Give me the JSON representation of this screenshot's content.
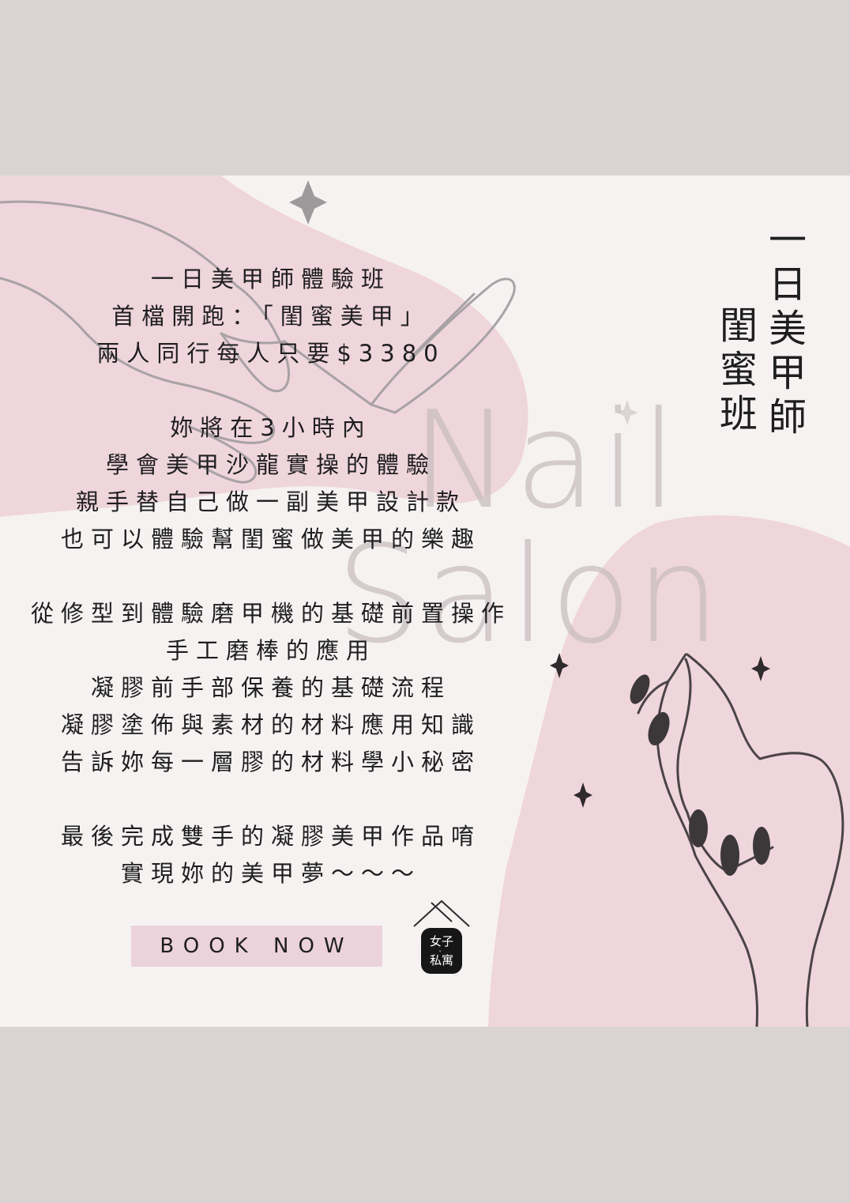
{
  "headline_lines": [
    "一日美甲師體驗班",
    "首檔開跑：「閨蜜美甲」",
    "兩人同行每人只要$3380"
  ],
  "intro_lines": [
    "妳將在3小時內",
    "學會美甲沙龍實操的體驗",
    "親手替自己做一副美甲設計款",
    "也可以體驗幫閨蜜做美甲的樂趣"
  ],
  "course_lines": [
    "從修型到體驗磨甲機的基礎前置操作",
    "手工磨棒的應用",
    "凝膠前手部保養的基礎流程",
    "凝膠塗佈與素材的材料應用知識",
    "告訴妳每一層膠的材料學小秘密"
  ],
  "closing_lines": [
    "最後完成雙手的凝膠美甲作品唷",
    "實現妳的美甲夢～～～"
  ],
  "vertical_title": {
    "col1": "一日美甲師",
    "col2": "閨蜜班"
  },
  "watermark": {
    "line1": "Nail",
    "line2": "Salon"
  },
  "book_button": "BOOK NOW",
  "logo": {
    "line1": "女子",
    "line2": "私寓",
    "dot": "。"
  },
  "colors": {
    "page_bg": "#d9d3d4",
    "poster_bg": "#f6f2f2",
    "pink_blob": "#efd5dc",
    "button_bg": "#ecd2da",
    "text": "#1e1e1e"
  },
  "icons": [
    "sparkle-icon",
    "hand-with-brush-illustration",
    "hand-with-nails-illustration"
  ]
}
